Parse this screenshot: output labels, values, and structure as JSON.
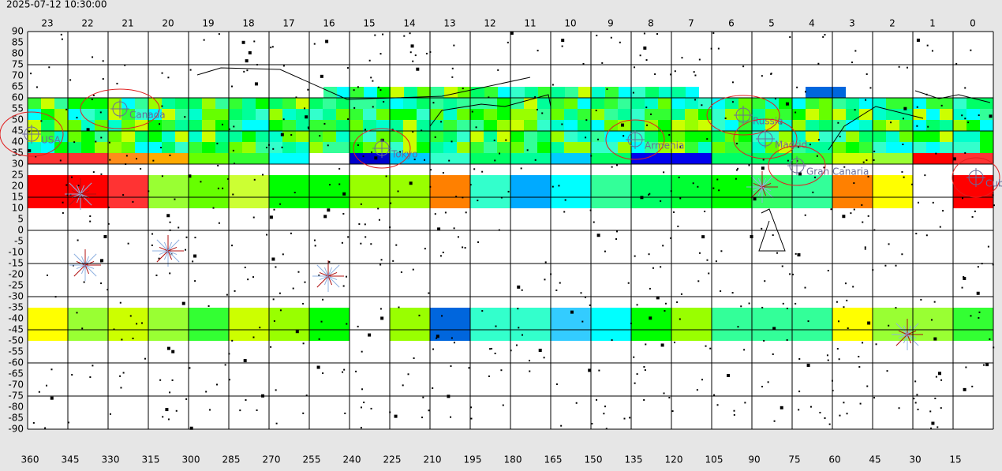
{
  "timestamp": "2025-07-12 10:30:00",
  "hours": [
    23,
    22,
    21,
    20,
    19,
    18,
    17,
    16,
    15,
    14,
    13,
    12,
    11,
    10,
    9,
    8,
    7,
    6,
    5,
    4,
    3,
    2,
    1,
    0
  ],
  "lat_labels": [
    90,
    85,
    80,
    75,
    70,
    65,
    60,
    55,
    50,
    45,
    40,
    35,
    30,
    25,
    20,
    15,
    10,
    5,
    0,
    -5,
    -10,
    -15,
    -20,
    -25,
    -30,
    -35,
    -40,
    -45,
    -50,
    -55,
    -60,
    -65,
    -70,
    -75,
    -80,
    -85,
    -90
  ],
  "lon_labels": [
    360,
    345,
    330,
    315,
    300,
    285,
    270,
    255,
    240,
    225,
    210,
    195,
    180,
    165,
    150,
    135,
    120,
    105,
    90,
    75,
    60,
    45,
    30,
    15
  ],
  "places": [
    {
      "label": "USA"
    },
    {
      "label": "Canada"
    },
    {
      "label": "Tokyo"
    },
    {
      "label": "Armenia"
    },
    {
      "label": "Russia"
    },
    {
      "label": "Madrid"
    },
    {
      "label": "Gran Canaria"
    },
    {
      "label": "Cuba"
    }
  ]
}
